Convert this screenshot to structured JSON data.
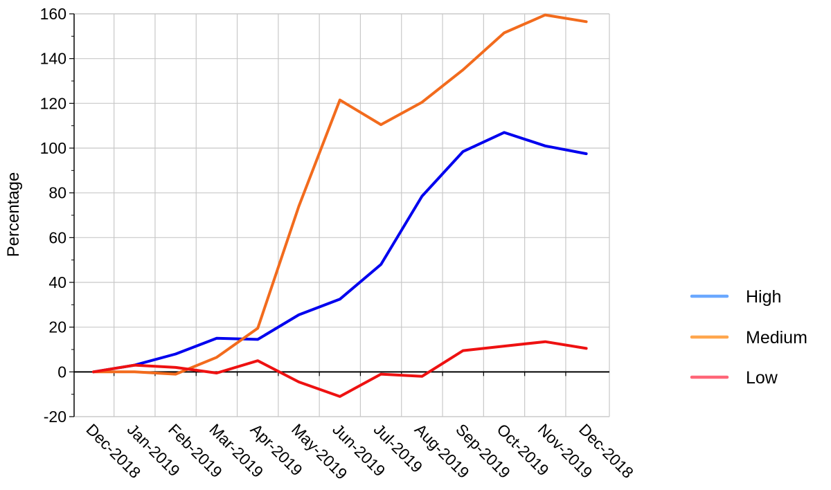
{
  "chart_data": {
    "type": "line",
    "title": "",
    "xlabel": "",
    "ylabel": "Percentage",
    "ylim": [
      -20,
      160
    ],
    "yticks": [
      -20,
      0,
      20,
      40,
      60,
      80,
      100,
      120,
      140,
      160
    ],
    "categories": [
      "Dec-2018",
      "Jan-2019",
      "Feb-2019",
      "Mar-2019",
      "Apr-2019",
      "May-2019",
      "Jun-2019",
      "Jul-2019",
      "Aug-2019",
      "Sep-2019",
      "Oct-2019",
      "Nov-2019",
      "Dec-2018"
    ],
    "grid": true,
    "legend_position": "right",
    "series": [
      {
        "name": "High",
        "line_color": "#0000ee",
        "legend_color": "#6aa8ff",
        "values": [
          0,
          3,
          8,
          15,
          14.5,
          25.5,
          32.5,
          48,
          78.5,
          98.5,
          107,
          101,
          97.5
        ]
      },
      {
        "name": "Medium",
        "line_color": "#f26b1d",
        "legend_color": "#ffa64d",
        "values": [
          0,
          0,
          -1,
          6.5,
          19.5,
          74,
          121.5,
          110.5,
          120.5,
          135,
          151.5,
          159.5,
          156.5
        ]
      },
      {
        "name": "Low",
        "line_color": "#ee1111",
        "legend_color": "#ff6678",
        "values": [
          0,
          3,
          2,
          -0.5,
          5,
          -4.5,
          -11,
          -1,
          -2,
          9.5,
          11.5,
          13.5,
          10.5
        ]
      }
    ]
  }
}
